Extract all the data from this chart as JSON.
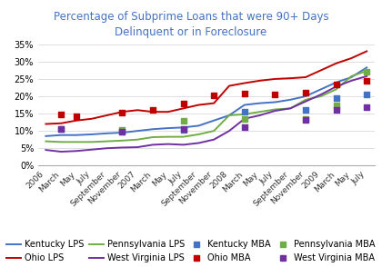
{
  "title": "Percentage of Subprime Loans that were 90+ Days\nDelinquent or in Foreclosure",
  "title_color": "#4472C4",
  "background_color": "#FFFFFF",
  "x_labels": [
    "2006",
    "March",
    "May",
    "July",
    "September",
    "November",
    "2007",
    "March",
    "May",
    "July",
    "September",
    "November",
    "2008",
    "March",
    "May",
    "July",
    "September",
    "November",
    "2009",
    "March",
    "May",
    "July"
  ],
  "ylim": [
    0,
    0.37
  ],
  "yticks": [
    0.0,
    0.05,
    0.1,
    0.15,
    0.2,
    0.25,
    0.3,
    0.35
  ],
  "ytick_labels": [
    "0%",
    "5%",
    "10%",
    "15%",
    "20%",
    "25%",
    "30%",
    "35%"
  ],
  "kentucky_lps": [
    0.085,
    0.088,
    0.088,
    0.09,
    0.093,
    0.095,
    0.1,
    0.105,
    0.108,
    0.11,
    0.115,
    0.13,
    0.145,
    0.175,
    0.18,
    0.183,
    0.19,
    0.2,
    0.22,
    0.24,
    0.255,
    0.283
  ],
  "ohio_lps": [
    0.12,
    0.122,
    0.13,
    0.135,
    0.145,
    0.155,
    0.16,
    0.155,
    0.155,
    0.165,
    0.175,
    0.18,
    0.23,
    0.238,
    0.245,
    0.25,
    0.252,
    0.255,
    0.275,
    0.295,
    0.31,
    0.33
  ],
  "pennsylvania_lps": [
    0.07,
    0.068,
    0.068,
    0.068,
    0.07,
    0.072,
    0.075,
    0.082,
    0.083,
    0.083,
    0.09,
    0.1,
    0.145,
    0.148,
    0.155,
    0.162,
    0.165,
    0.19,
    0.2,
    0.22,
    0.258,
    0.273
  ],
  "westvirginia_lps": [
    0.045,
    0.04,
    0.042,
    0.046,
    0.05,
    0.052,
    0.053,
    0.06,
    0.062,
    0.06,
    0.065,
    0.075,
    0.1,
    0.135,
    0.145,
    0.158,
    0.165,
    0.185,
    0.205,
    0.228,
    0.245,
    0.258
  ],
  "kentucky_mba_x": [
    1,
    5,
    9,
    13,
    17,
    19,
    21
  ],
  "kentucky_mba_y": [
    0.105,
    0.098,
    0.103,
    0.155,
    0.16,
    0.195,
    0.205
  ],
  "ohio_mba_x": [
    1,
    2,
    5,
    7,
    9,
    11,
    13,
    15,
    17,
    19,
    21
  ],
  "ohio_mba_y": [
    0.148,
    0.143,
    0.152,
    0.16,
    0.178,
    0.203,
    0.207,
    0.205,
    0.21,
    0.233,
    0.245
  ],
  "pennsylvania_mba_x": [
    5,
    9,
    13,
    17,
    19,
    21
  ],
  "pennsylvania_mba_y": [
    0.102,
    0.13,
    0.135,
    0.135,
    0.175,
    0.27
  ],
  "westvirginia_mba_x": [
    1,
    5,
    9,
    13,
    17,
    19,
    21
  ],
  "westvirginia_mba_y": [
    0.105,
    0.098,
    0.105,
    0.112,
    0.133,
    0.16,
    0.168
  ],
  "color_kentucky": "#4472C4",
  "color_ohio": "#C00000",
  "color_pennsylvania": "#70AD47",
  "color_westvirginia": "#7030A0",
  "grid_color": "#D9D9D9",
  "legend_fontsize": 7.0,
  "tick_fontsize": 6.5
}
